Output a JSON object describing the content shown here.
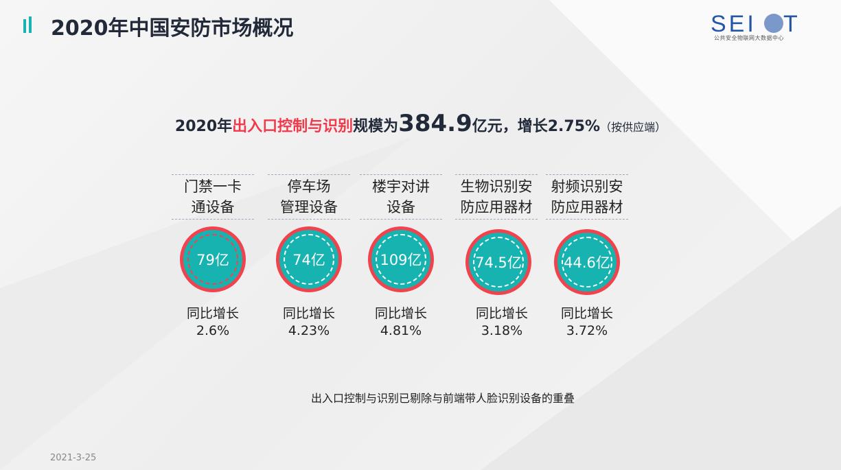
{
  "title": "2020年中国安防市场概况",
  "logo": {
    "text": "SEIOT",
    "subtitle": "公共安全物联网大数据中心"
  },
  "headline": {
    "prefix": "2020年",
    "highlight": "出入口控制与识别",
    "mid": "规模为",
    "amount": "384.9",
    "unit": "亿元，增长2.75%",
    "note": "（按供应端）"
  },
  "colors": {
    "accent": "#f0394a",
    "teal": "#17b3b0",
    "ring": "#f0434e"
  },
  "items": [
    {
      "line1": "门禁一卡",
      "line2": "通设备",
      "value": "79亿",
      "growth_label": "同比增长",
      "growth": "2.6%"
    },
    {
      "line1": "停车场",
      "line2": "管理设备",
      "value": "74亿",
      "growth_label": "同比增长",
      "growth": "4.23%"
    },
    {
      "line1": "楼宇对讲",
      "line2": "设备",
      "value": "109亿",
      "growth_label": "同比增长",
      "growth": "4.81%"
    },
    {
      "line1": "生物识别安",
      "line2": "防应用器材",
      "value": "74.5亿",
      "growth_label": "同比增长",
      "growth": "3.18%"
    },
    {
      "line1": "射频识别安",
      "line2": "防应用器材",
      "value": "44.6亿",
      "growth_label": "同比增长",
      "growth": "3.72%"
    }
  ],
  "footnote": "出入口控制与识别已剔除与前端带人脸识别设备的重叠",
  "date": "2021-3-25"
}
